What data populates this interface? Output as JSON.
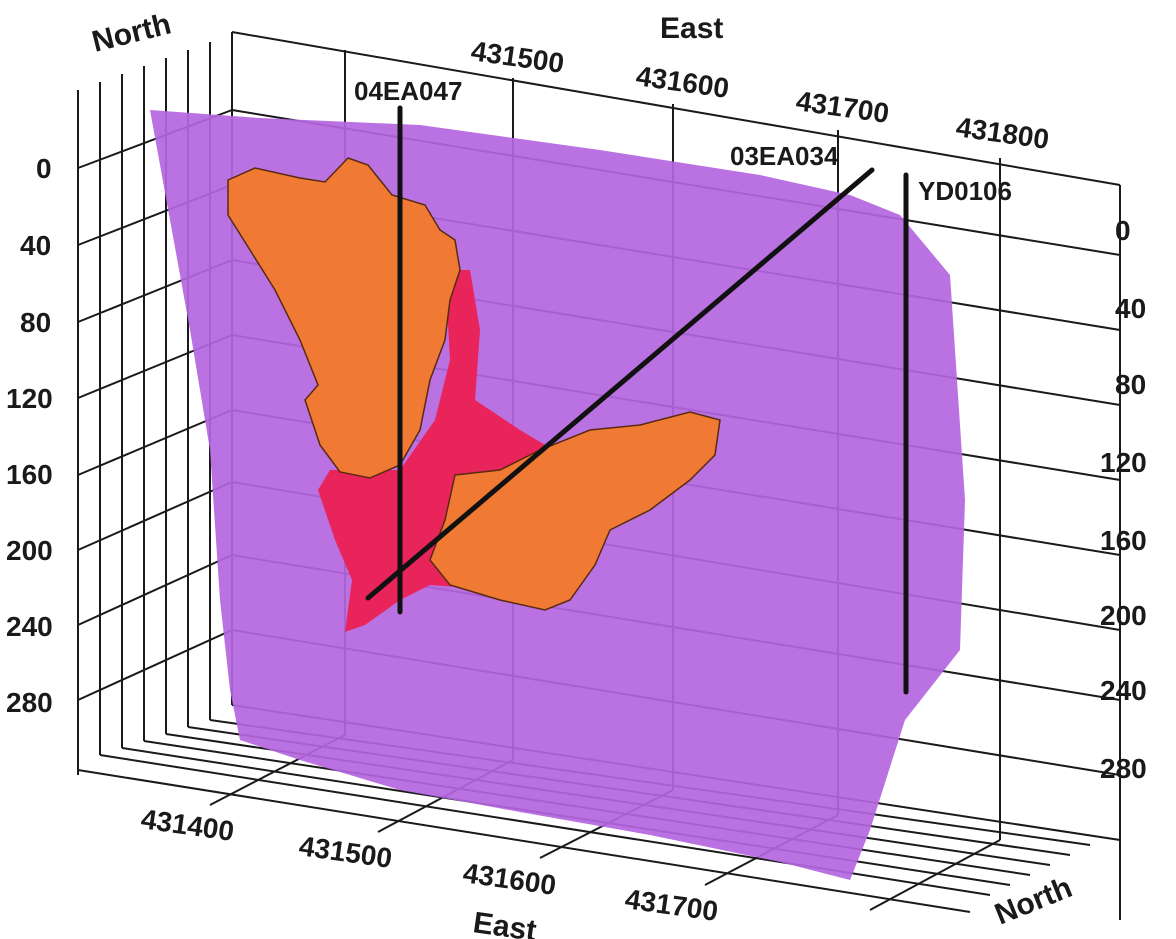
{
  "axes": {
    "north_top_label": "North",
    "north_bottom_label": "North",
    "east_top_label": "East",
    "east_bottom_label": "East",
    "east_top_ticks": [
      "431500",
      "431600",
      "431700",
      "431800"
    ],
    "east_bottom_ticks": [
      "431400",
      "431500",
      "431600",
      "431700"
    ],
    "depth_left_ticks": [
      "0",
      "40",
      "80",
      "120",
      "160",
      "200",
      "240",
      "280"
    ],
    "depth_right_ticks": [
      "0",
      "40",
      "80",
      "120",
      "160",
      "200",
      "240",
      "280"
    ]
  },
  "drillholes": [
    {
      "name": "04EA047"
    },
    {
      "name": "03EA034"
    },
    {
      "name": "YD0106"
    }
  ],
  "colors": {
    "host_surface": "#b466e0",
    "orebody_orange": "#f07a33",
    "orebody_red": "#e8245a",
    "grid": "#1a1a1a"
  }
}
